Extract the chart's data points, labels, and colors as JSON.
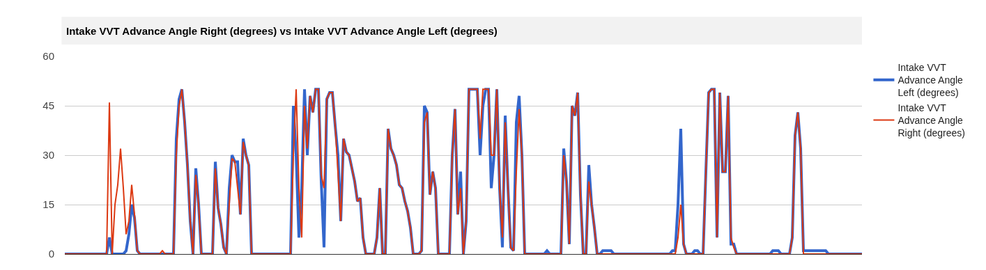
{
  "chart_data": {
    "type": "line",
    "title": "Intake VVT Advance Angle Right (degrees) vs Intake VVT Advance Angle Left (degrees)",
    "categories": [
      null,
      null,
      null,
      null,
      null,
      null,
      null,
      null,
      null,
      null,
      null,
      null,
      null,
      null,
      null,
      null,
      null,
      null,
      null,
      null,
      null,
      null,
      null,
      null,
      null,
      null,
      null,
      null,
      null,
      null,
      null,
      null,
      null,
      null,
      null,
      null,
      null,
      null,
      null,
      null,
      null,
      null,
      null,
      null,
      null,
      null,
      null,
      null,
      null,
      null,
      null,
      null,
      null,
      null,
      null,
      null,
      null,
      null,
      null,
      null,
      null,
      null,
      null,
      null,
      null,
      null,
      null,
      null,
      null,
      null,
      null,
      null,
      null,
      null,
      null,
      null,
      null,
      null,
      null,
      null,
      null,
      null,
      null,
      null,
      null,
      null,
      null,
      null,
      null,
      null,
      null,
      null,
      null,
      null,
      null,
      null,
      null,
      null,
      null,
      null,
      null,
      null,
      null,
      null,
      null,
      null,
      null,
      null,
      null,
      null,
      null,
      null,
      null,
      null,
      null,
      null,
      null,
      null,
      null,
      null,
      null,
      null,
      null,
      null,
      null,
      null,
      null,
      null,
      null,
      null,
      null,
      null,
      null,
      null,
      null,
      null,
      null,
      null,
      null,
      null,
      null,
      null,
      null,
      null,
      null,
      null,
      null,
      null,
      null,
      null,
      null,
      null,
      null,
      null,
      null,
      null,
      null,
      null,
      null,
      null,
      null,
      null,
      null,
      null,
      null,
      null,
      null,
      null,
      null,
      null,
      null,
      null,
      null,
      null,
      null,
      null,
      null,
      null,
      null,
      null,
      null,
      null,
      null,
      null,
      null,
      null,
      null,
      null,
      null,
      null,
      null,
      null,
      null,
      null,
      null,
      null,
      null,
      null,
      null,
      null,
      null,
      null,
      null,
      null,
      null,
      null,
      null,
      null,
      null,
      null,
      null,
      null,
      null,
      null,
      null,
      null,
      null,
      null,
      null,
      null,
      null,
      null,
      null,
      null,
      null,
      null,
      null,
      null,
      null,
      null,
      null,
      null,
      null,
      null,
      null,
      null,
      null,
      null,
      null,
      null,
      null,
      null,
      null,
      null,
      null,
      null,
      null,
      null,
      null,
      null,
      null,
      null,
      null,
      null,
      null,
      null,
      null,
      null,
      null,
      null,
      null,
      null,
      null,
      null,
      null,
      null,
      null,
      null,
      null,
      null,
      null,
      null,
      null,
      null,
      null,
      null,
      null,
      null,
      null,
      null,
      null,
      null,
      null,
      null,
      null,
      null,
      null
    ],
    "series": [
      {
        "name": "Intake VVT Advance Angle Left (degrees)",
        "color": "#3366cc",
        "values": [
          0,
          0,
          0,
          0,
          0,
          0,
          0,
          0,
          0,
          0,
          0,
          0,
          0,
          0,
          0,
          0,
          5,
          0,
          0,
          0,
          0,
          0,
          1,
          6,
          15,
          11,
          1,
          0,
          0,
          0,
          0,
          0,
          0,
          0,
          0,
          0,
          0,
          0,
          0,
          0,
          35,
          47,
          50,
          40,
          27,
          10,
          0,
          26,
          15,
          0,
          0,
          0,
          0,
          0,
          28,
          14,
          9,
          2,
          0,
          20,
          30,
          28,
          28,
          12,
          35,
          30,
          27,
          0,
          0,
          0,
          0,
          0,
          0,
          0,
          0,
          0,
          0,
          0,
          0,
          0,
          0,
          0,
          45,
          30,
          5,
          20,
          50,
          30,
          48,
          43,
          50,
          50,
          22,
          2,
          47,
          49,
          49,
          39,
          30,
          10,
          35,
          31,
          30,
          26,
          22,
          16,
          17,
          5,
          0,
          0,
          0,
          0,
          5,
          20,
          0,
          0,
          38,
          32,
          30,
          27,
          21,
          20,
          16,
          13,
          8,
          0,
          0,
          0,
          1,
          45,
          43,
          18,
          25,
          20,
          0,
          0,
          0,
          0,
          0,
          30,
          44,
          12,
          25,
          0,
          10,
          50,
          50,
          50,
          50,
          30,
          45,
          50,
          50,
          20,
          30,
          50,
          20,
          2,
          42,
          20,
          2,
          1,
          40,
          48,
          30,
          0,
          0,
          0,
          0,
          0,
          0,
          0,
          0,
          1,
          0,
          0,
          0,
          0,
          0,
          32,
          22,
          3,
          45,
          42,
          49,
          18,
          0,
          0,
          27,
          15,
          8,
          0,
          0,
          1,
          1,
          1,
          1,
          0,
          0,
          0,
          0,
          0,
          0,
          0,
          0,
          0,
          0,
          0,
          0,
          0,
          0,
          0,
          0,
          0,
          0,
          0,
          0,
          0,
          1,
          1,
          15,
          38,
          3,
          0,
          0,
          0,
          1,
          1,
          0,
          0,
          25,
          49,
          50,
          50,
          5,
          49,
          25,
          25,
          48,
          3,
          3,
          0,
          0,
          0,
          0,
          0,
          0,
          0,
          0,
          0,
          0,
          0,
          0,
          0,
          1,
          1,
          1,
          0,
          0,
          0,
          0,
          5,
          36,
          43,
          32,
          1,
          1,
          1,
          1,
          1,
          1,
          1,
          1,
          1,
          0,
          0,
          0,
          0,
          0,
          0,
          0,
          0,
          0,
          0,
          0,
          0,
          0
        ]
      },
      {
        "name": "Intake VVT Advance Angle Right (degrees)",
        "color": "#dc3912",
        "values": [
          0,
          0,
          0,
          0,
          0,
          0,
          0,
          0,
          0,
          0,
          0,
          0,
          0,
          0,
          0,
          0,
          46,
          0,
          15,
          21,
          32,
          20,
          6,
          10,
          21,
          12,
          1,
          0,
          0,
          0,
          0,
          0,
          0,
          0,
          0,
          1,
          0,
          0,
          0,
          0,
          30,
          45,
          50,
          40,
          27,
          10,
          0,
          24,
          15,
          0,
          0,
          0,
          0,
          0,
          26,
          14,
          9,
          2,
          0,
          15,
          29,
          28,
          20,
          12,
          34,
          30,
          27,
          0,
          0,
          0,
          0,
          0,
          0,
          0,
          0,
          0,
          0,
          0,
          0,
          0,
          0,
          0,
          30,
          50,
          20,
          5,
          45,
          32,
          48,
          43,
          50,
          50,
          24,
          20,
          47,
          49,
          49,
          39,
          25,
          10,
          35,
          31,
          30,
          26,
          22,
          16,
          17,
          5,
          0,
          0,
          0,
          0,
          5,
          20,
          0,
          0,
          38,
          32,
          30,
          27,
          21,
          20,
          16,
          13,
          8,
          0,
          0,
          0,
          1,
          40,
          43,
          18,
          25,
          20,
          0,
          0,
          0,
          0,
          0,
          30,
          44,
          12,
          20,
          0,
          10,
          50,
          50,
          50,
          50,
          35,
          50,
          50,
          50,
          30,
          30,
          50,
          20,
          5,
          40,
          20,
          2,
          1,
          25,
          44,
          30,
          0,
          0,
          0,
          0,
          0,
          0,
          0,
          0,
          0,
          0,
          0,
          0,
          0,
          0,
          30,
          22,
          3,
          45,
          42,
          49,
          18,
          0,
          0,
          22,
          15,
          8,
          0,
          0,
          0,
          0,
          0,
          0,
          0,
          0,
          0,
          0,
          0,
          0,
          0,
          0,
          0,
          0,
          0,
          0,
          0,
          0,
          0,
          0,
          0,
          0,
          0,
          0,
          0,
          0,
          0,
          5,
          15,
          3,
          0,
          0,
          0,
          0,
          0,
          0,
          0,
          25,
          49,
          50,
          50,
          5,
          49,
          25,
          25,
          48,
          5,
          2,
          0,
          0,
          0,
          0,
          0,
          0,
          0,
          0,
          0,
          0,
          0,
          0,
          0,
          0,
          0,
          0,
          0,
          0,
          0,
          0,
          5,
          36,
          43,
          32,
          0,
          0,
          0,
          0,
          0,
          0,
          0,
          0,
          0,
          0,
          0,
          0,
          0,
          0,
          0,
          0,
          0,
          0,
          0,
          0,
          0,
          0
        ]
      }
    ],
    "ylim": [
      0,
      60
    ],
    "yticks": [
      0,
      15,
      30,
      45,
      60
    ],
    "grid": "y",
    "legend": "right",
    "marker": "none",
    "line_style": "solid"
  }
}
